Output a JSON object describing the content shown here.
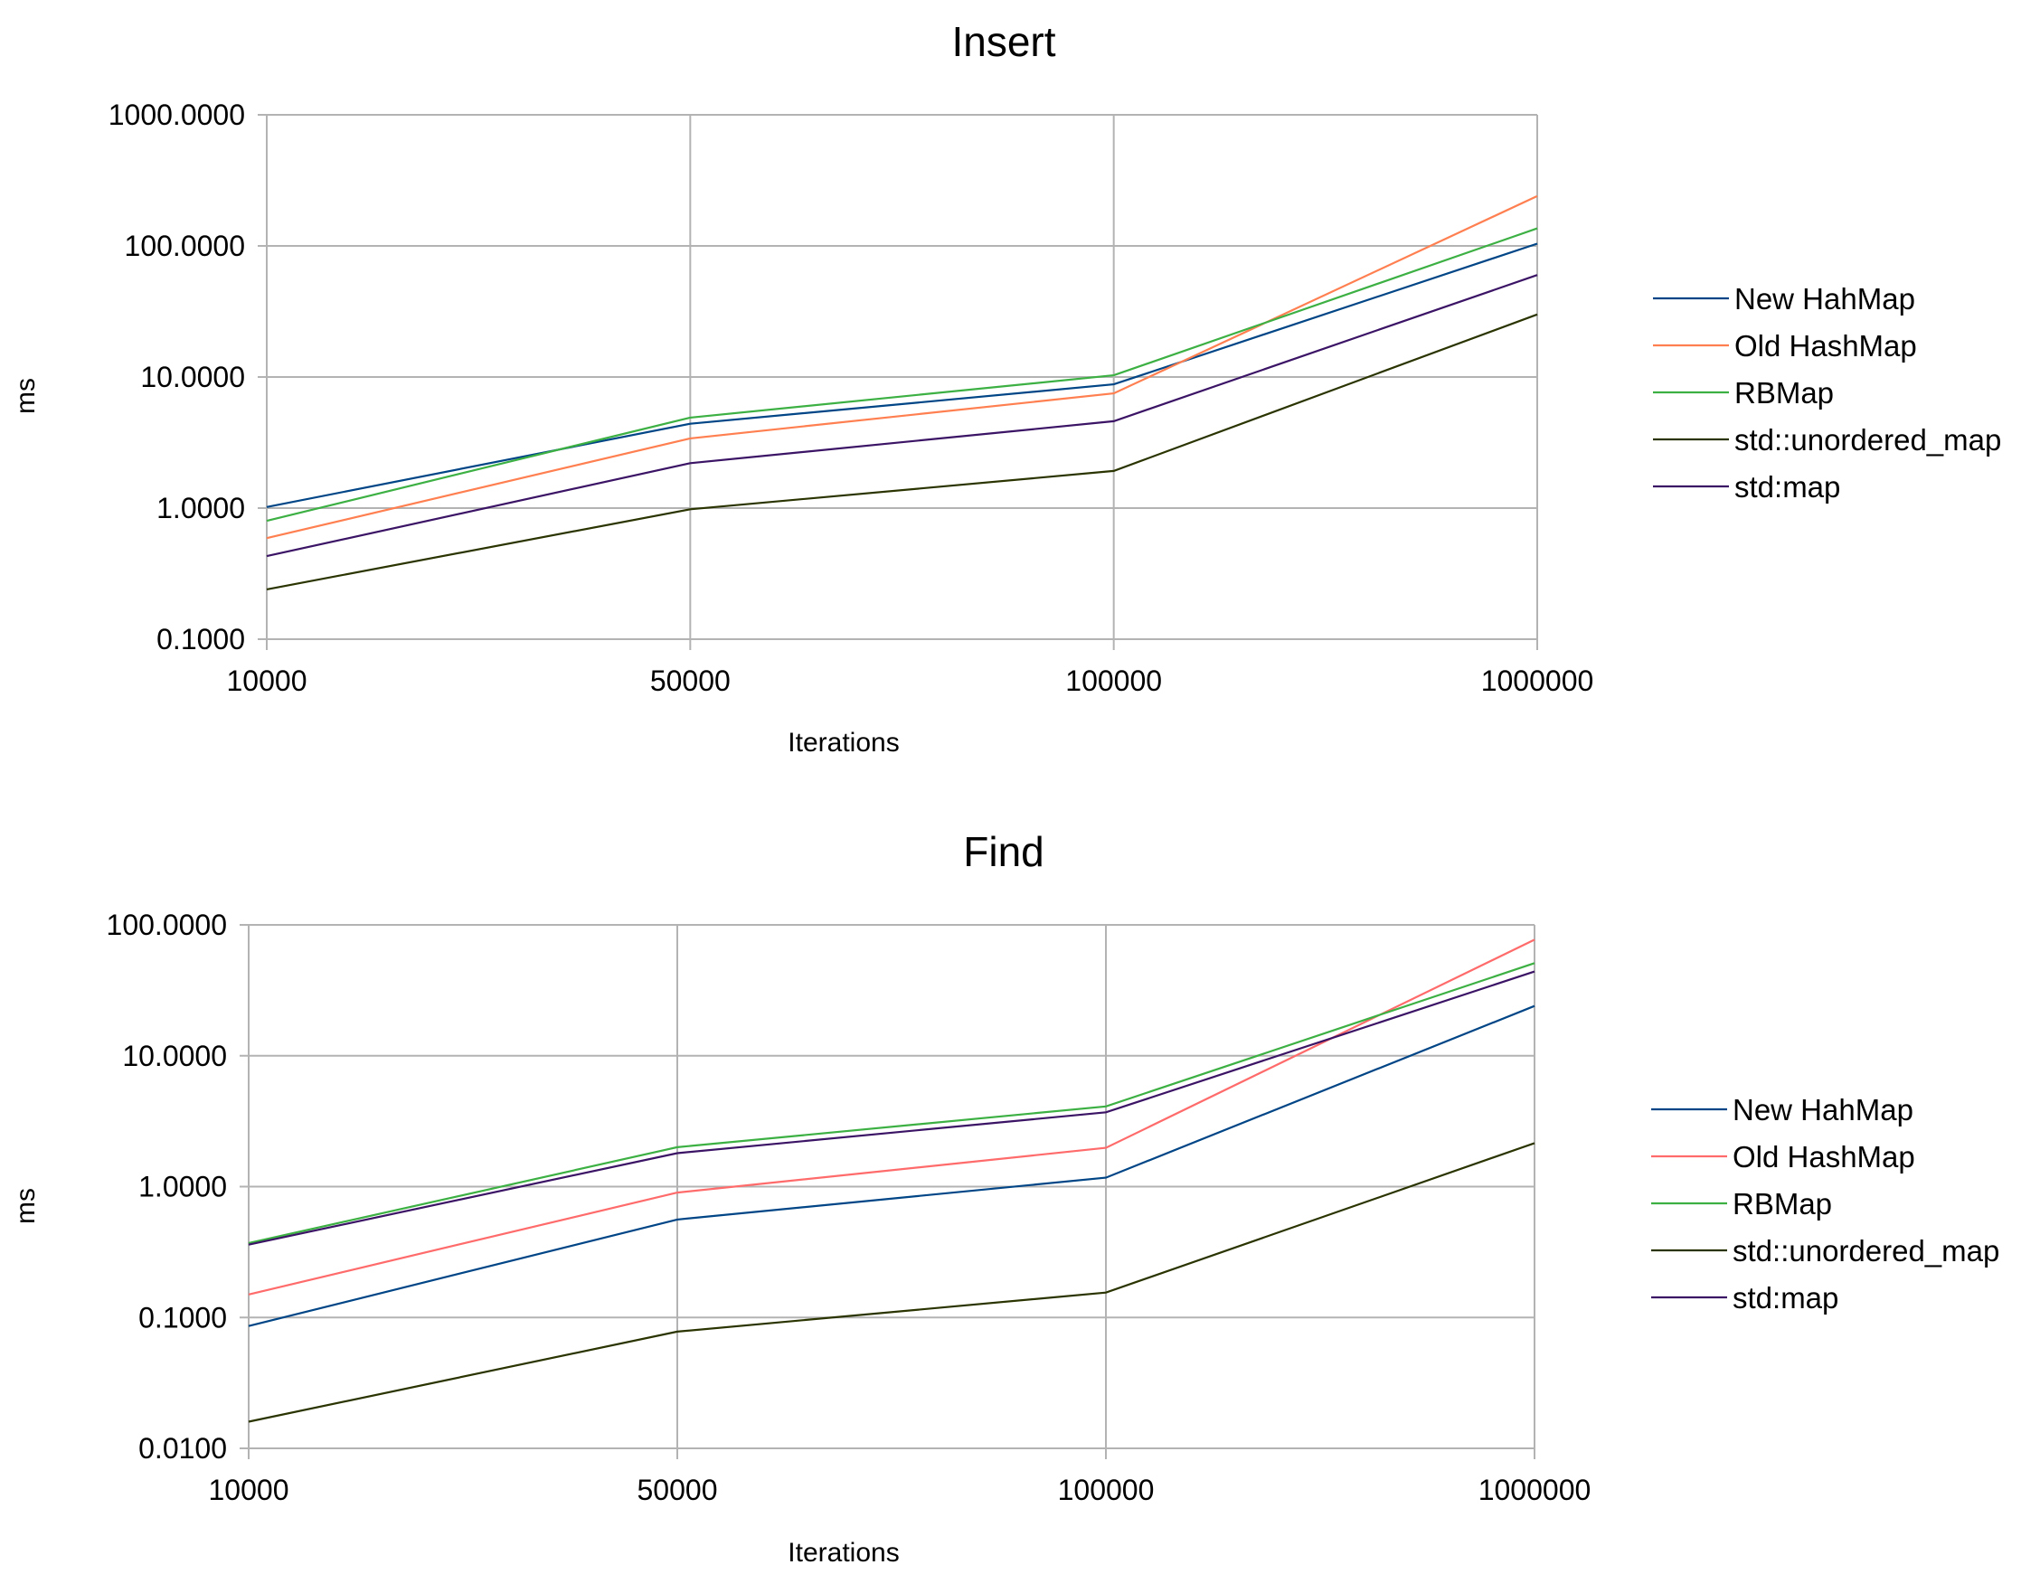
{
  "chart_data": [
    {
      "type": "line",
      "title": "Insert",
      "xlabel": "Iterations",
      "ylabel": "ms",
      "yscale": "log",
      "ylim": [
        0.1,
        1000
      ],
      "grid": true,
      "legend": "right",
      "categories": [
        "10000",
        "50000",
        "100000",
        "1000000"
      ],
      "yticks": [
        "1000.0000",
        "100.0000",
        "10.0000",
        "1.0000",
        "0.1000"
      ],
      "series": [
        {
          "name": "New HahMap",
          "color": "#004586",
          "values": [
            1.02,
            4.4,
            8.8,
            104
          ]
        },
        {
          "name": "Old HashMap",
          "color": "#ff7f50",
          "values": [
            0.59,
            3.4,
            7.5,
            240
          ]
        },
        {
          "name": "RBMap",
          "color": "#3cb043",
          "values": [
            0.8,
            4.9,
            10.3,
            136
          ]
        },
        {
          "name": "std::unordered_map",
          "color": "#2a3400",
          "values": [
            0.24,
            0.98,
            1.92,
            30
          ]
        },
        {
          "name": "std:map",
          "color": "#3b1466",
          "values": [
            0.43,
            2.2,
            4.6,
            60
          ]
        }
      ]
    },
    {
      "type": "line",
      "title": "Find",
      "xlabel": "Iterations",
      "ylabel": "ms",
      "yscale": "log",
      "ylim": [
        0.01,
        100
      ],
      "grid": true,
      "legend": "right",
      "categories": [
        "10000",
        "50000",
        "100000",
        "1000000"
      ],
      "yticks": [
        "100.0000",
        "10.0000",
        "1.0000",
        "0.1000",
        "0.0100"
      ],
      "series": [
        {
          "name": "New HahMap",
          "color": "#004586",
          "values": [
            0.086,
            0.56,
            1.17,
            24
          ]
        },
        {
          "name": "Old HashMap",
          "color": "#ff6b6b",
          "values": [
            0.15,
            0.9,
            1.98,
            77
          ]
        },
        {
          "name": "RBMap",
          "color": "#3cb043",
          "values": [
            0.37,
            2.0,
            4.1,
            51
          ]
        },
        {
          "name": "std::unordered_map",
          "color": "#2a3400",
          "values": [
            0.016,
            0.078,
            0.155,
            2.15
          ]
        },
        {
          "name": "std:map",
          "color": "#3b1466",
          "values": [
            0.36,
            1.8,
            3.7,
            44
          ]
        }
      ]
    }
  ]
}
